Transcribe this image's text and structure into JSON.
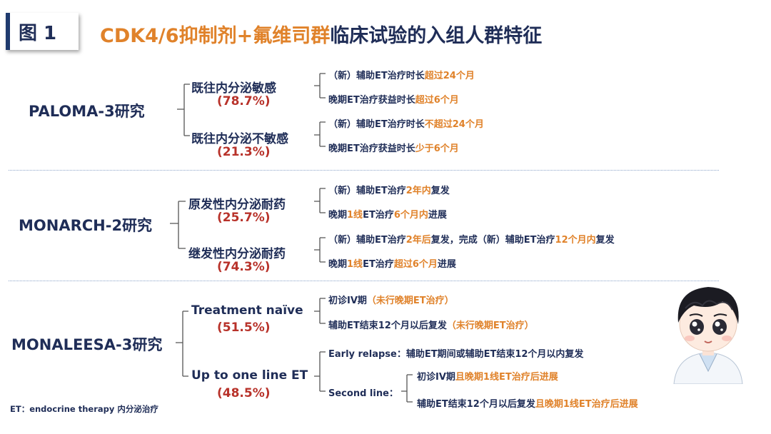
{
  "figure_label": "图 1",
  "title": {
    "part1": "CDK4/6抑制剂+氟维司群",
    "part2": "临床试验的入组人群特征"
  },
  "studies": [
    {
      "name": "PALOMA-3研究",
      "groups": [
        {
          "label": "既往内分泌敏感",
          "percent": "(78.7%)",
          "criteria": [
            {
              "normal": "（新）辅助ET治疗时长",
              "highlight": "超过24个月",
              "tail": ""
            },
            {
              "normal": "晚期ET治疗获益时长",
              "highlight": "超过6个月",
              "tail": ""
            }
          ]
        },
        {
          "label": "既往内分泌不敏感",
          "percent": "(21.3%)",
          "criteria": [
            {
              "normal": "（新）辅助ET治疗时长",
              "highlight": "不超过24个月",
              "tail": ""
            },
            {
              "normal": "晚期ET治疗获益时长",
              "highlight": "少于6个月",
              "tail": ""
            }
          ]
        }
      ]
    },
    {
      "name": "MONARCH-2研究",
      "groups": [
        {
          "label": "原发性内分泌耐药",
          "percent": "(25.7%)",
          "criteria": [
            {
              "normal": "（新）辅助ET治疗",
              "highlight": "2年内",
              "tail": "复发"
            },
            {
              "normal": "晚期",
              "highlight": "1线",
              "tail": "ET治疗",
              "highlight2": "6个月内",
              "tail2": "进展"
            }
          ]
        },
        {
          "label": "继发性内分泌耐药",
          "percent": "(74.3%)",
          "criteria": [
            {
              "normal": "（新）辅助ET治疗",
              "highlight": "2年后",
              "tail": "复发，完成（新）辅助ET治疗",
              "highlight2": "12个月内",
              "tail2": "复发"
            },
            {
              "normal": "晚期",
              "highlight": "1线",
              "tail": "ET治疗",
              "highlight2": "超过6个月",
              "tail2": "进展"
            }
          ]
        }
      ]
    },
    {
      "name": "MONALEESA-3研究",
      "groups": [
        {
          "label": "Treatment naïve",
          "percent": "(51.5%)",
          "criteria": [
            {
              "normal": "初诊IV期",
              "highlight": "（未行晚期ET治疗）",
              "tail": ""
            },
            {
              "normal": "辅助ET结束12个月以后复发",
              "highlight": "（未行晚期ET治疗）",
              "tail": ""
            }
          ]
        },
        {
          "label": "Up to one line ET",
          "percent": "(48.5%)",
          "early_relapse": "Early relapse：辅助ET期间或辅助ET结束12个月以内复发",
          "second_line_label": "Second line：",
          "second_line": [
            {
              "normal": "初诊IV期",
              "highlight": "且晚期1线ET治疗后进展",
              "tail": ""
            },
            {
              "normal": "辅助ET结束12个月以后复发",
              "highlight": "且晚期1线ET治疗后进展",
              "tail": ""
            }
          ]
        }
      ]
    }
  ],
  "footnote": "ET：endocrine therapy 内分泌治疗",
  "colors": {
    "navy": "#1f2d57",
    "orange": "#e0822a",
    "red": "#b8322a",
    "line": "#555555"
  }
}
